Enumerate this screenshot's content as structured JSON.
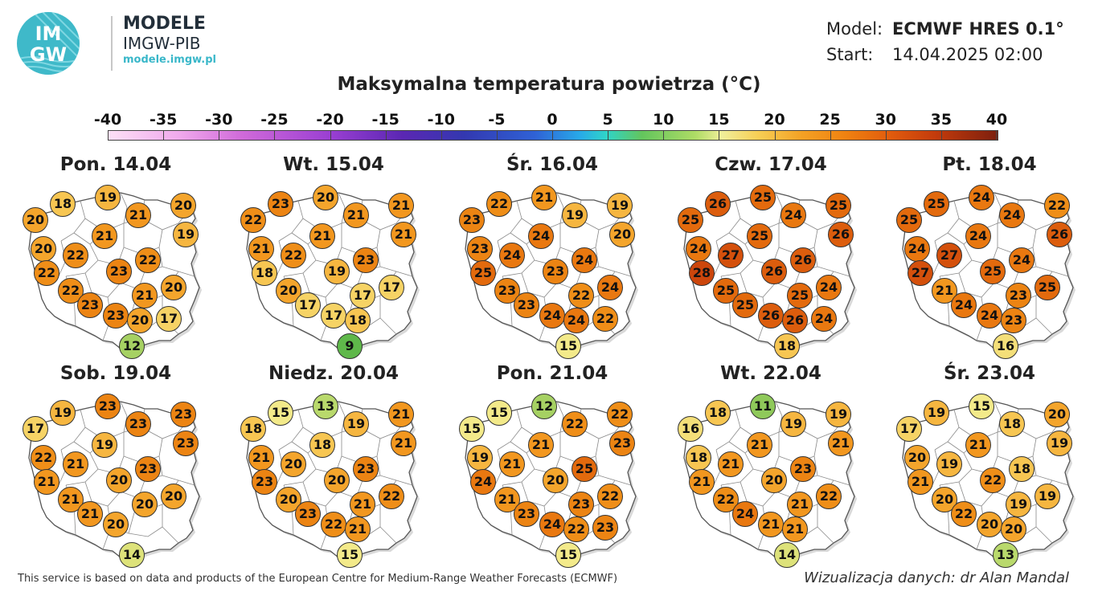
{
  "header": {
    "logo_letters_top": "IM",
    "logo_letters_bottom": "GW",
    "brand_line1": "MODELE",
    "brand_line2": "IMGW-PIB",
    "brand_url": "modele.imgw.pl",
    "model_label": "Model:",
    "model_value": "ECMWF HRES 0.1°",
    "start_label": "Start:",
    "start_value": "14.04.2025 02:00"
  },
  "title": "Maksymalna temperatura powietrza (°C)",
  "scale": {
    "labels": [
      "-40",
      "-35",
      "-30",
      "-25",
      "-20",
      "-15",
      "-10",
      "-5",
      "0",
      "5",
      "10",
      "15",
      "20",
      "25",
      "30",
      "35",
      "40"
    ]
  },
  "colors": {
    "t9": "#5fb84a",
    "t11": "#8fc95a",
    "t12": "#a6d163",
    "t13": "#b9d96c",
    "t14": "#dde27a",
    "t15": "#f3ea8a",
    "t16": "#f4df79",
    "t17": "#f6d365",
    "t18": "#f7c652",
    "t19": "#f6b640",
    "t20": "#f4a52c",
    "t21": "#f2971f",
    "t22": "#ef8e18",
    "t23": "#ec8413",
    "t24": "#e97810",
    "t25": "#e36a0d",
    "t26": "#dc5d0d",
    "t27": "#d4500c",
    "t28": "#cc460c"
  },
  "panels": [
    {
      "date": "Pon. 14.04",
      "temps": [
        18,
        19,
        20,
        20,
        21,
        19,
        20,
        21,
        22,
        23,
        22,
        22,
        22,
        21,
        20,
        23,
        23,
        20,
        17,
        12
      ]
    },
    {
      "date": "Wt. 15.04",
      "temps": [
        23,
        20,
        22,
        21,
        21,
        21,
        21,
        21,
        22,
        19,
        23,
        18,
        20,
        17,
        17,
        17,
        17,
        18,
        9
      ]
    },
    {
      "date": "Śr. 16.04",
      "temps": [
        22,
        21,
        23,
        19,
        19,
        20,
        23,
        24,
        24,
        23,
        24,
        25,
        23,
        22,
        24,
        23,
        24,
        24,
        22,
        15
      ]
    },
    {
      "date": "Czw. 17.04",
      "temps": [
        26,
        25,
        25,
        25,
        24,
        26,
        24,
        25,
        27,
        26,
        26,
        28,
        25,
        25,
        24,
        25,
        26,
        26,
        24,
        18
      ]
    },
    {
      "date": "Pt. 18.04",
      "temps": [
        25,
        24,
        25,
        22,
        24,
        26,
        24,
        24,
        27,
        25,
        24,
        27,
        21,
        23,
        25,
        24,
        24,
        23,
        16
      ]
    },
    {
      "date": "Sob. 19.04",
      "temps": [
        19,
        23,
        17,
        23,
        23,
        23,
        22,
        19,
        21,
        20,
        23,
        21,
        21,
        20,
        20,
        21,
        20,
        14
      ]
    },
    {
      "date": "Niedz. 20.04",
      "temps": [
        15,
        13,
        18,
        21,
        19,
        21,
        21,
        18,
        20,
        20,
        23,
        23,
        20,
        21,
        22,
        23,
        22,
        21,
        15
      ]
    },
    {
      "date": "Pon. 21.04",
      "temps": [
        15,
        12,
        15,
        22,
        22,
        23,
        19,
        21,
        21,
        20,
        25,
        24,
        21,
        23,
        22,
        23,
        24,
        22,
        23,
        15
      ]
    },
    {
      "date": "Wt. 22.04",
      "temps": [
        18,
        11,
        16,
        19,
        19,
        21,
        18,
        21,
        21,
        20,
        23,
        21,
        22,
        21,
        22,
        24,
        21,
        21,
        14
      ]
    },
    {
      "date": "Śr. 23.04",
      "temps": [
        19,
        15,
        17,
        20,
        18,
        19,
        20,
        21,
        19,
        22,
        18,
        21,
        20,
        19,
        19,
        22,
        20,
        20,
        13
      ]
    }
  ],
  "footer": {
    "left": "This service is based on data and products of the European Centre for Medium-Range Weather Forecasts (ECMWF)",
    "right": "Wizualizacja danych: dr Alan Mandal"
  }
}
